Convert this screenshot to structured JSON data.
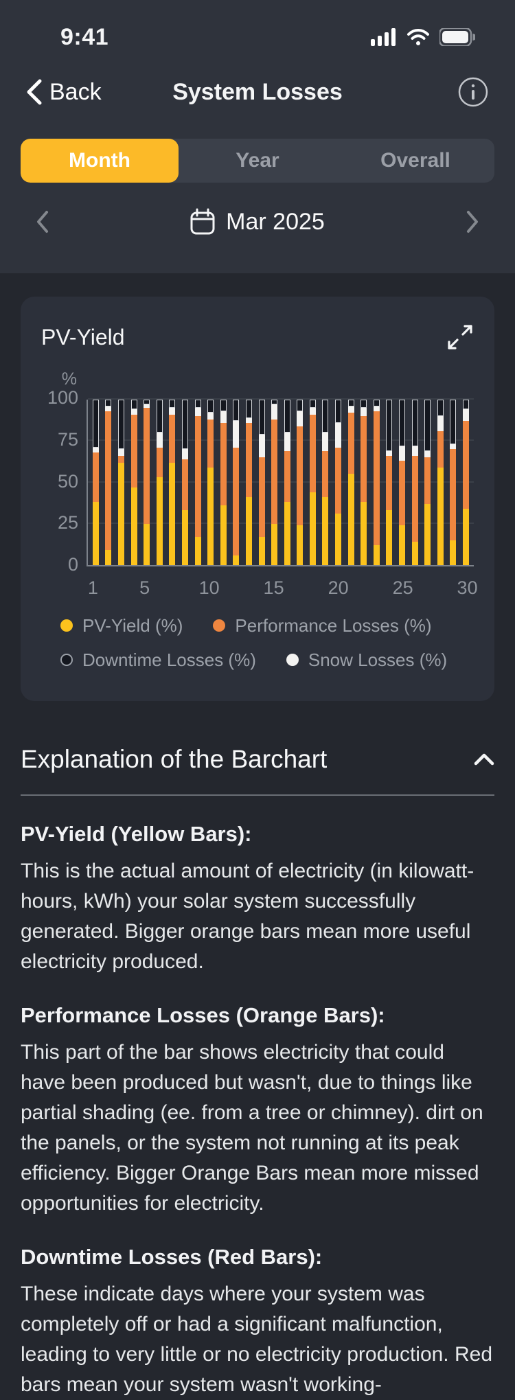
{
  "status_bar": {
    "time": "9:41"
  },
  "header": {
    "back_label": "Back",
    "title": "System Losses"
  },
  "tabs": [
    {
      "label": "Month",
      "active": true
    },
    {
      "label": "Year",
      "active": false
    },
    {
      "label": "Overall",
      "active": false
    }
  ],
  "date_nav": {
    "label": "Mar 2025"
  },
  "chart_card": {
    "title": "PV-Yield"
  },
  "chart_data": {
    "type": "bar",
    "stacked": true,
    "title": "PV-Yield",
    "unit": "%",
    "x": [
      1,
      2,
      3,
      4,
      5,
      6,
      7,
      8,
      9,
      10,
      11,
      12,
      13,
      14,
      15,
      16,
      17,
      18,
      19,
      20,
      21,
      22,
      23,
      24,
      25,
      26,
      27,
      28,
      29,
      30
    ],
    "x_tick_labels": [
      1,
      5,
      10,
      15,
      20,
      25,
      30
    ],
    "y_ticks": [
      0,
      25,
      50,
      75,
      100
    ],
    "ylim": [
      0,
      100
    ],
    "grid": true,
    "legend_position": "bottom",
    "series": [
      {
        "key": "pv_yield",
        "name": "PV-Yield (%)",
        "color": "#fbc21d",
        "values": [
          38,
          9,
          62,
          47,
          25,
          53,
          62,
          33,
          17,
          59,
          36,
          6,
          41,
          17,
          25,
          38,
          24,
          44,
          41,
          31,
          55,
          38,
          12,
          33,
          24,
          14,
          37,
          59,
          15,
          34
        ]
      },
      {
        "key": "performance_losses",
        "name": "Performance Losses (%)",
        "color": "#ef8640",
        "values": [
          30,
          84,
          4,
          44,
          70,
          18,
          29,
          31,
          73,
          29,
          50,
          65,
          45,
          48,
          63,
          31,
          60,
          47,
          28,
          40,
          37,
          52,
          81,
          33,
          39,
          52,
          28,
          22,
          55,
          53
        ]
      },
      {
        "key": "snow_losses",
        "name": "Snow Losses (%)",
        "color": "#f4f3f1",
        "values": [
          3,
          3,
          4,
          3,
          2,
          9,
          4,
          6,
          5,
          4,
          7,
          16,
          3,
          14,
          9,
          11,
          9,
          4,
          11,
          15,
          4,
          5,
          3,
          3,
          9,
          6,
          4,
          9,
          3,
          7
        ]
      },
      {
        "key": "downtime_losses",
        "name": "Downtime Losses (%)",
        "color": "#14171f",
        "values": [
          29,
          4,
          30,
          6,
          3,
          20,
          5,
          30,
          5,
          8,
          7,
          13,
          11,
          21,
          3,
          20,
          7,
          5,
          20,
          14,
          4,
          5,
          4,
          31,
          28,
          28,
          31,
          10,
          27,
          6
        ]
      }
    ]
  },
  "legend_items": [
    {
      "label": "PV-Yield (%)",
      "color": "#fbc21d",
      "ring": false
    },
    {
      "label": "Performance Losses (%)",
      "color": "#ef8640",
      "ring": false
    },
    {
      "label": "Downtime Losses (%)",
      "color": "#14171f",
      "ring": true
    },
    {
      "label": "Snow Losses (%)",
      "color": "#f4f3f1",
      "ring": false
    }
  ],
  "explanation": {
    "heading": "Explanation of the Barchart",
    "sections": [
      {
        "title": "PV-Yield (Yellow Bars):",
        "body": "This is the actual amount of electricity (in kilowatt-hours, kWh) your solar system successfully generated. Bigger orange bars mean more useful electricity produced."
      },
      {
        "title": "Performance Losses (Orange Bars):",
        "body": "This part of the bar shows electricity that could have been produced but wasn't, due to things like partial shading (ee. from a tree or chimney). dirt on the panels, or the system not running at its peak efficiency. Bigger Orange Bars mean more missed opportunities for electricity."
      },
      {
        "title": "Downtime Losses (Red Bars):",
        "body": "These indicate days where your system was completely off or had a significant malfunction, leading to very little or no electricity production. Red bars mean your system wasn't working-"
      }
    ]
  },
  "colors": {
    "accent_yellow": "#fcba28",
    "header_bg": "#2f333c",
    "page_bg": "#24272e",
    "card_bg": "#2c303a"
  }
}
